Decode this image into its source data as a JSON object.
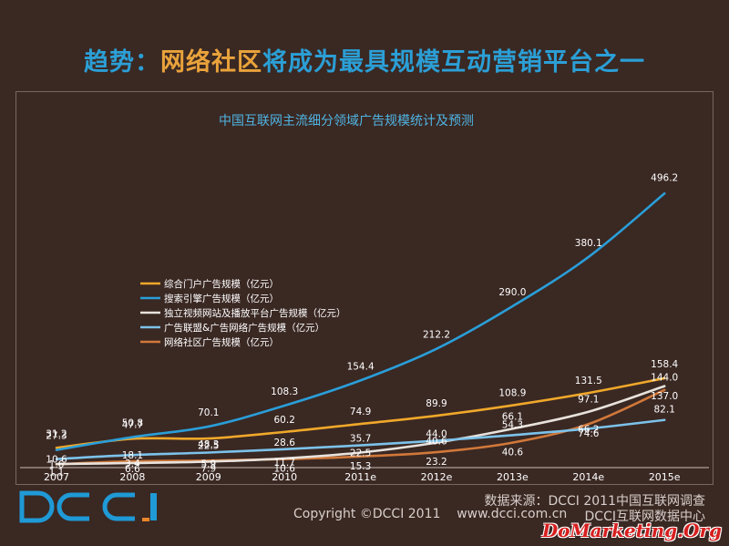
{
  "slide": {
    "title_part1": "趋势：",
    "title_part2": "网络社区",
    "title_part3": "将成为最具规模互动营销平台之一"
  },
  "footer": {
    "logo_text": "DCCI",
    "source": "数据来源：DCCI 2011中国互联网调查",
    "copyright": "Copyright ©DCCI 2011",
    "site": "www.dcci.com.cn",
    "center": "DCCI互联网数据中心",
    "watermark": "DoMarketing.Org"
  },
  "colors": {
    "background": "#3a2823",
    "title_blue": "#2b9fd6",
    "title_orange": "#e9a33b",
    "logo_blue": "#1f9ad6",
    "logo_orange": "#e9862b"
  },
  "chart_data": {
    "type": "line",
    "title": "中国互联网主流细分领域广告规模统计及预测",
    "categories": [
      "2007",
      "2008",
      "2009",
      "2010",
      "2011e",
      "2012e",
      "2013e",
      "2014e",
      "2015e"
    ],
    "series": [
      {
        "name": "综合门户广告规模（亿元）",
        "color": "#f0a82a",
        "values": [
          31.2,
          47.7,
          48.3,
          60.2,
          74.9,
          89.9,
          108.9,
          131.5,
          158.4
        ]
      },
      {
        "name": "搜索引擎广告规模（亿元）",
        "color": "#2a9ed8",
        "values": [
          27.3,
          50.8,
          70.1,
          108.3,
          154.4,
          212.2,
          290.0,
          380.1,
          496.2
        ]
      },
      {
        "name": "独立视频网站及播放平台广告规模（亿元）",
        "color": "#e8e2dc",
        "values": [
          1.6,
          3.4,
          5.9,
          11.7,
          22.5,
          40.6,
          66.1,
          97.1,
          144.0
        ]
      },
      {
        "name": "广告联盟&广告网络广告规模（亿元）",
        "color": "#7cc2ea",
        "values": [
          10.6,
          18.1,
          22.5,
          28.6,
          35.7,
          44.0,
          54.3,
          66.2,
          82.1
        ]
      },
      {
        "name": "网络社区广告规模（亿元）",
        "color": "#d0783a",
        "values": [
          1.1,
          6.6,
          7.9,
          10.6,
          15.3,
          23.2,
          40.6,
          74.6,
          137.0
        ]
      }
    ],
    "ylim": [
      0,
      500
    ],
    "legend_position": "left-middle"
  }
}
